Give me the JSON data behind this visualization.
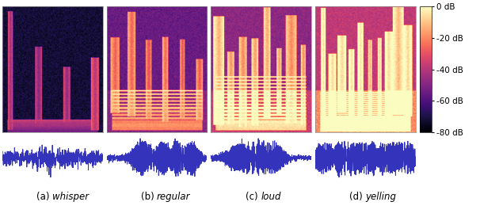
{
  "labels": [
    "(a) whisper",
    "(b) regular",
    "(c) loud",
    "(d) yelling"
  ],
  "label_italic_parts": [
    "whisper",
    "regular",
    "loud",
    "yelling"
  ],
  "label_prefix": [
    "(a) ",
    "(b) ",
    "(c) ",
    "(d) "
  ],
  "colorbar_ticks": [
    0,
    -20,
    -40,
    -60,
    -80
  ],
  "colorbar_labels": [
    "0 dB",
    "-20 dB",
    "-40 dB",
    "-60 dB",
    "-80 dB"
  ],
  "db_range": [
    -80,
    0
  ],
  "cmap_name": "magma",
  "waveform_color": "#3333bb",
  "background_color": "#ffffff",
  "fig_width": 6.3,
  "fig_height": 2.74,
  "spec_base_db": [
    -72,
    -55,
    -48,
    -38
  ],
  "spec_streak_db": [
    -45,
    -28,
    -18,
    -10
  ],
  "spec_harmonic_db": [
    -55,
    -30,
    -20,
    -10
  ],
  "waveform_amplitudes": [
    0.04,
    0.28,
    0.55,
    0.78
  ],
  "n_freq": 256,
  "n_time": 200
}
